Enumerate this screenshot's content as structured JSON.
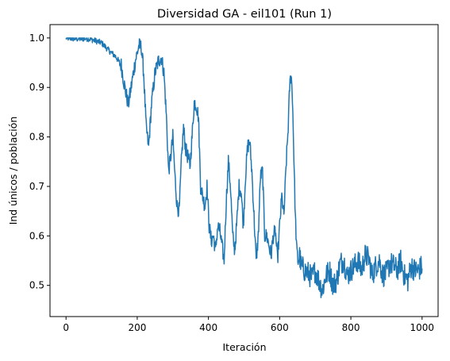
{
  "chart_data": {
    "type": "line",
    "title": "Diversidad GA - eil101 (Run 1)",
    "xlabel": "Iteración",
    "ylabel": "Ind únicos / población",
    "xlim": [
      -45,
      1045
    ],
    "ylim": [
      0.437,
      1.027
    ],
    "xticks": [
      0,
      200,
      400,
      600,
      800,
      1000
    ],
    "yticks": [
      0.5,
      0.6,
      0.7,
      0.8,
      0.9,
      1.0
    ],
    "xtick_labels": [
      "0",
      "200",
      "400",
      "600",
      "800",
      "1000"
    ],
    "ytick_labels": [
      "0.5",
      "0.6",
      "0.7",
      "0.8",
      "0.9",
      "1.0"
    ],
    "grid": false,
    "legend": "none",
    "line_color": "#1f77b4",
    "series": [
      {
        "anchors_x": [
          0,
          30,
          60,
          80,
          100,
          120,
          140,
          155,
          165,
          175,
          185,
          195,
          205,
          212,
          218,
          225,
          232,
          240,
          250,
          260,
          268,
          275,
          282,
          288,
          294,
          300,
          306,
          312,
          318,
          324,
          330,
          336,
          342,
          348,
          354,
          360,
          366,
          372,
          378,
          384,
          390,
          396,
          402,
          408,
          414,
          420,
          426,
          432,
          438,
          444,
          450,
          456,
          462,
          468,
          474,
          480,
          486,
          492,
          498,
          504,
          510,
          516,
          522,
          528,
          534,
          540,
          546,
          552,
          558,
          564,
          570,
          576,
          582,
          588,
          594,
          600,
          606,
          612,
          618,
          624,
          628,
          632,
          636,
          640,
          644,
          648,
          652,
          656,
          660,
          670,
          680,
          690,
          700,
          710,
          720,
          730,
          740,
          750,
          760,
          770,
          780,
          790,
          800,
          810,
          820,
          830,
          840,
          850,
          860,
          870,
          880,
          890,
          900,
          910,
          920,
          930,
          940,
          950,
          960,
          970,
          980,
          990,
          1000
        ],
        "anchors_y": [
          1.0,
          0.998,
          0.999,
          0.995,
          0.99,
          0.975,
          0.962,
          0.945,
          0.9,
          0.865,
          0.91,
          0.955,
          0.985,
          0.98,
          0.93,
          0.82,
          0.78,
          0.865,
          0.93,
          0.955,
          0.96,
          0.93,
          0.84,
          0.73,
          0.76,
          0.8,
          0.72,
          0.66,
          0.65,
          0.75,
          0.82,
          0.775,
          0.76,
          0.74,
          0.8,
          0.87,
          0.865,
          0.84,
          0.7,
          0.68,
          0.66,
          0.7,
          0.62,
          0.59,
          0.6,
          0.57,
          0.62,
          0.61,
          0.58,
          0.55,
          0.67,
          0.75,
          0.7,
          0.6,
          0.57,
          0.63,
          0.7,
          0.69,
          0.62,
          0.72,
          0.78,
          0.79,
          0.73,
          0.64,
          0.55,
          0.6,
          0.72,
          0.73,
          0.6,
          0.6,
          0.58,
          0.56,
          0.6,
          0.61,
          0.55,
          0.62,
          0.68,
          0.64,
          0.74,
          0.82,
          0.9,
          0.93,
          0.88,
          0.76,
          0.64,
          0.57,
          0.55,
          0.56,
          0.54,
          0.53,
          0.525,
          0.515,
          0.53,
          0.51,
          0.49,
          0.52,
          0.53,
          0.5,
          0.51,
          0.545,
          0.55,
          0.52,
          0.53,
          0.54,
          0.55,
          0.53,
          0.56,
          0.555,
          0.52,
          0.54,
          0.55,
          0.52,
          0.525,
          0.545,
          0.54,
          0.53,
          0.55,
          0.52,
          0.51,
          0.54,
          0.53,
          0.53,
          0.54
        ]
      }
    ]
  }
}
